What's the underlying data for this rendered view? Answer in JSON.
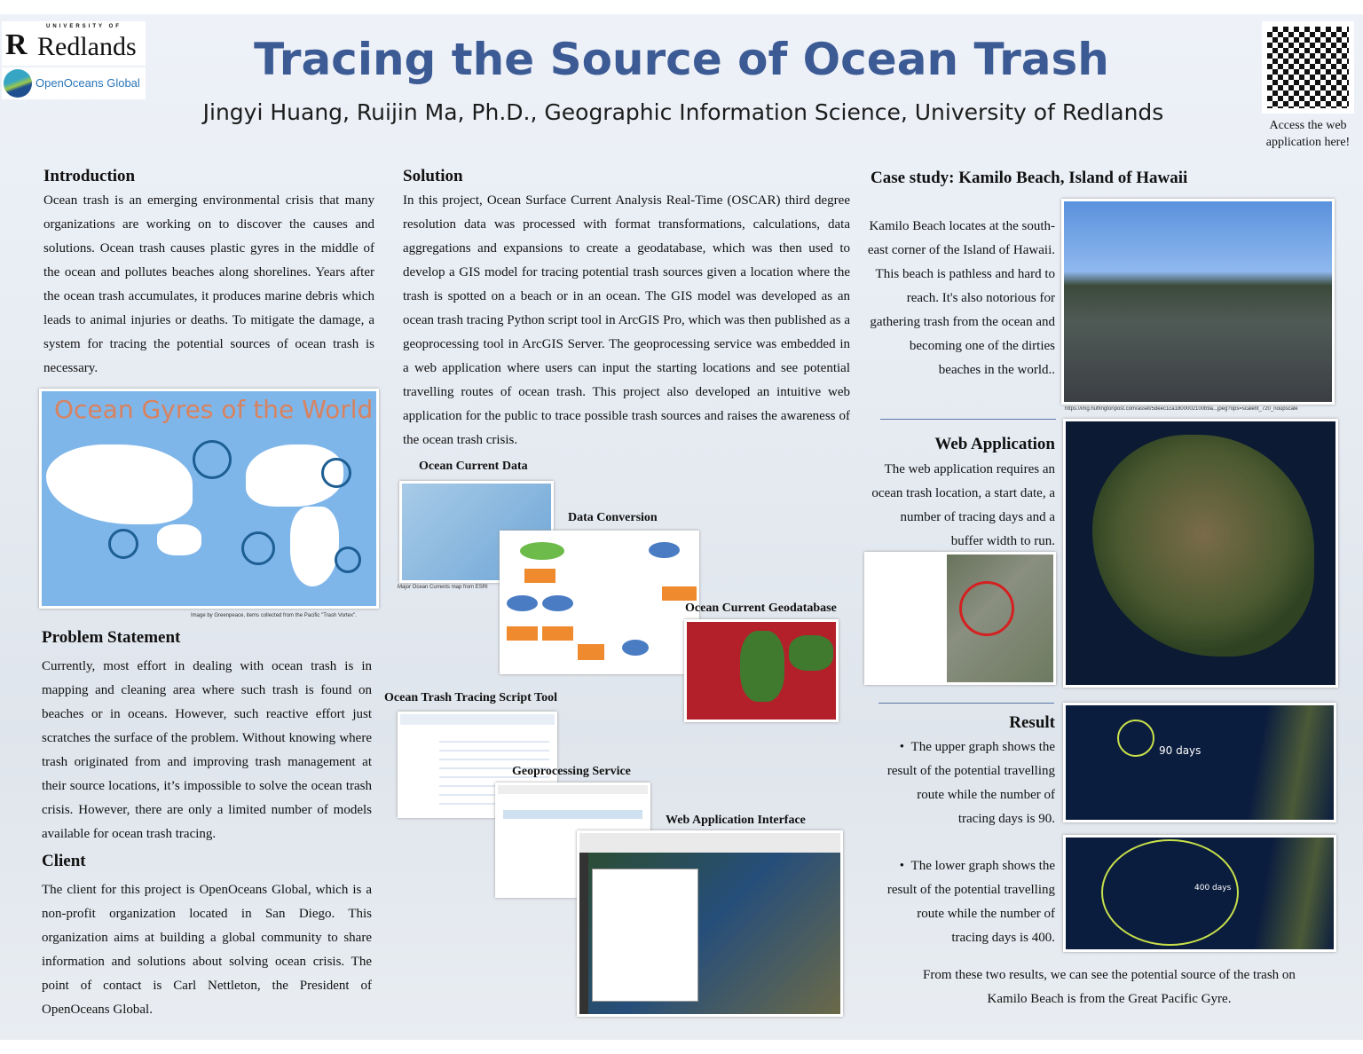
{
  "header": {
    "title": "Tracing the Source of Ocean Trash",
    "authors": "Jingyi Huang, Ruijin Ma, Ph.D., Geographic Information Science, University of Redlands",
    "logos": {
      "university": "UNIVERSITY OF Redlands",
      "partner": "OpenOceans Global"
    },
    "qr_caption": "Access the web application here!"
  },
  "introduction": {
    "heading": "Introduction",
    "text": "Ocean trash is an emerging environmental crisis that many organizations are working on to discover the causes and solutions. Ocean trash causes plastic gyres in the middle of the ocean and pollutes beaches along shorelines. Years after the ocean trash accumulates, it produces marine debris which leads to animal injuries or deaths. To mitigate the damage, a system for tracing the potential sources of ocean trash is necessary.",
    "figure_title": "Ocean Gyres of the World",
    "figure_caption": "Image by Greenpeace, items collected from the Pacific \"Trash Vortex\"."
  },
  "problem": {
    "heading": "Problem Statement",
    "text": "Currently, most effort in dealing with ocean trash is in mapping and cleaning area where such trash is found on beaches or in oceans. However, such reactive effort just scratches the surface of the problem. Without knowing where trash originated from and improving trash management at their source locations, it’s impossible to solve the ocean trash crisis. However, there are only a limited number of models available for ocean trash tracing."
  },
  "client": {
    "heading": "Client",
    "text": "The client for this project is OpenOceans Global, which is a non-profit organization located in San Diego. This organization aims at building a global community to share information and solutions about solving ocean crisis. The point of contact is Carl Nettleton, the President of OpenOceans Global."
  },
  "solution": {
    "heading": "Solution",
    "text": "In this project, Ocean Surface Current Analysis Real-Time (OSCAR) third degree resolution data was processed with format transformations, calculations, data aggregations and expansions to create a geodatabase, which was then used to develop a GIS model for tracing potential trash sources given a location where the trash is spotted on a beach or in an ocean. The GIS model was developed as an ocean trash tracing Python script tool in ArcGIS Pro, which was then published as a geoprocessing tool in ArcGIS Server. The geoprocessing service was embedded in a web application where users can input the starting locations and see potential travelling routes of ocean trash. This project also developed an intuitive web application for the public to trace possible trash sources and raises the awareness of the ocean trash crisis.",
    "figures": {
      "current_data": "Ocean Current Data",
      "current_data_caption": "Major Ocean Currents map from ESRI",
      "conversion": "Data Conversion",
      "geodatabase": "Ocean Current Geodatabase",
      "script_tool": "Ocean Trash Tracing Script Tool",
      "gp_service": "Geoprocessing Service",
      "web_interface": "Web Application Interface"
    }
  },
  "case_study": {
    "heading": "Case study: Kamilo Beach, Island of Hawaii",
    "text": "Kamilo Beach locates at the south-east corner of the Island of Hawaii. This beach is pathless and hard to reach. It's also notorious for gathering trash from the ocean and becoming one of the dirties beaches in the world..",
    "photo_caption": "https://img.huffingtonpost.com/asset/5deec1ca1800002100b9a...jpeg?ops=scalefit_720_noupscale"
  },
  "web_app": {
    "heading": "Web Application",
    "text": "The web application requires an ocean trash location, a start date, a number of tracing days and a buffer width to run."
  },
  "result": {
    "heading": "Result",
    "bullets": [
      "The upper graph shows the result of the potential travelling route while the number of tracing days is 90.",
      "The lower graph shows the result of the potential travelling route while the number of tracing days is 400."
    ],
    "map_labels": [
      "90 days",
      "400 days"
    ],
    "conclusion": "From these two results, we can see the potential source of the trash on Kamilo Beach is from the Great Pacific Gyre."
  },
  "colors": {
    "title": "#3c5a94",
    "gyre_title": "#d9825e",
    "ocean": "#7fb6ea"
  }
}
